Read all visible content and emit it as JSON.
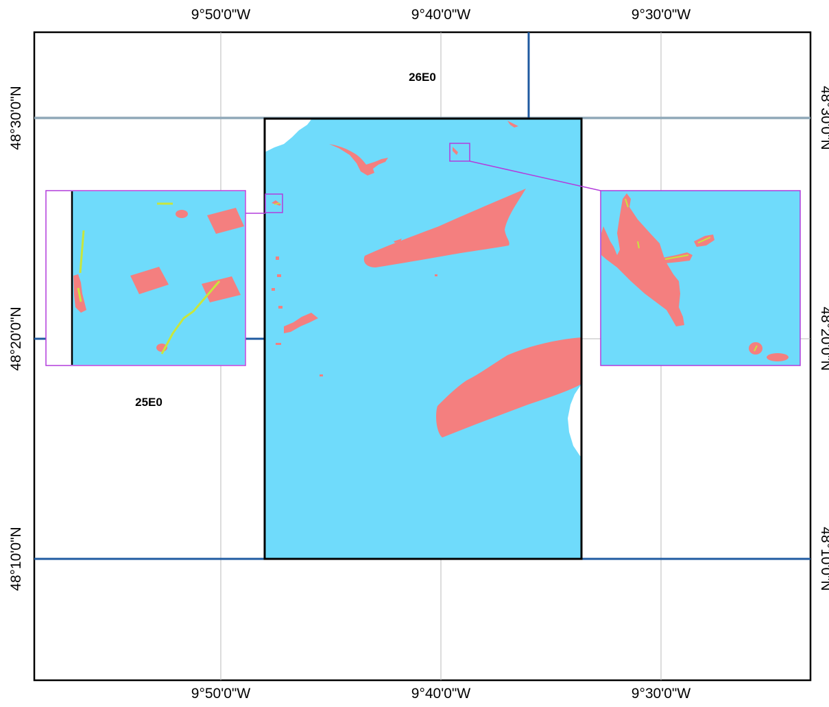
{
  "map": {
    "top_axis": [
      "9°50'0\"W",
      "9°40'0\"W",
      "9°30'0\"W"
    ],
    "bottom_axis": [
      "9°50'0\"W",
      "9°40'0\"W",
      "9°30'0\"W"
    ],
    "left_axis": [
      "48°30'0\"N",
      "48°20'0\"N",
      "48°10'0\"N"
    ],
    "right_axis": [
      "48°30'0\"N",
      "48°20'0\"N",
      "48°10'0\"N"
    ],
    "tile_labels": {
      "north_tile": "26E0",
      "west_tile": "25E0"
    },
    "colors": {
      "water": "#6fdbfb",
      "feature": "#f47f7f",
      "track": "#c8e63c",
      "inset_frame": "#b23cdc",
      "tile_boundary": "#1f5aa0",
      "graticule": "#b8b8b8"
    }
  }
}
